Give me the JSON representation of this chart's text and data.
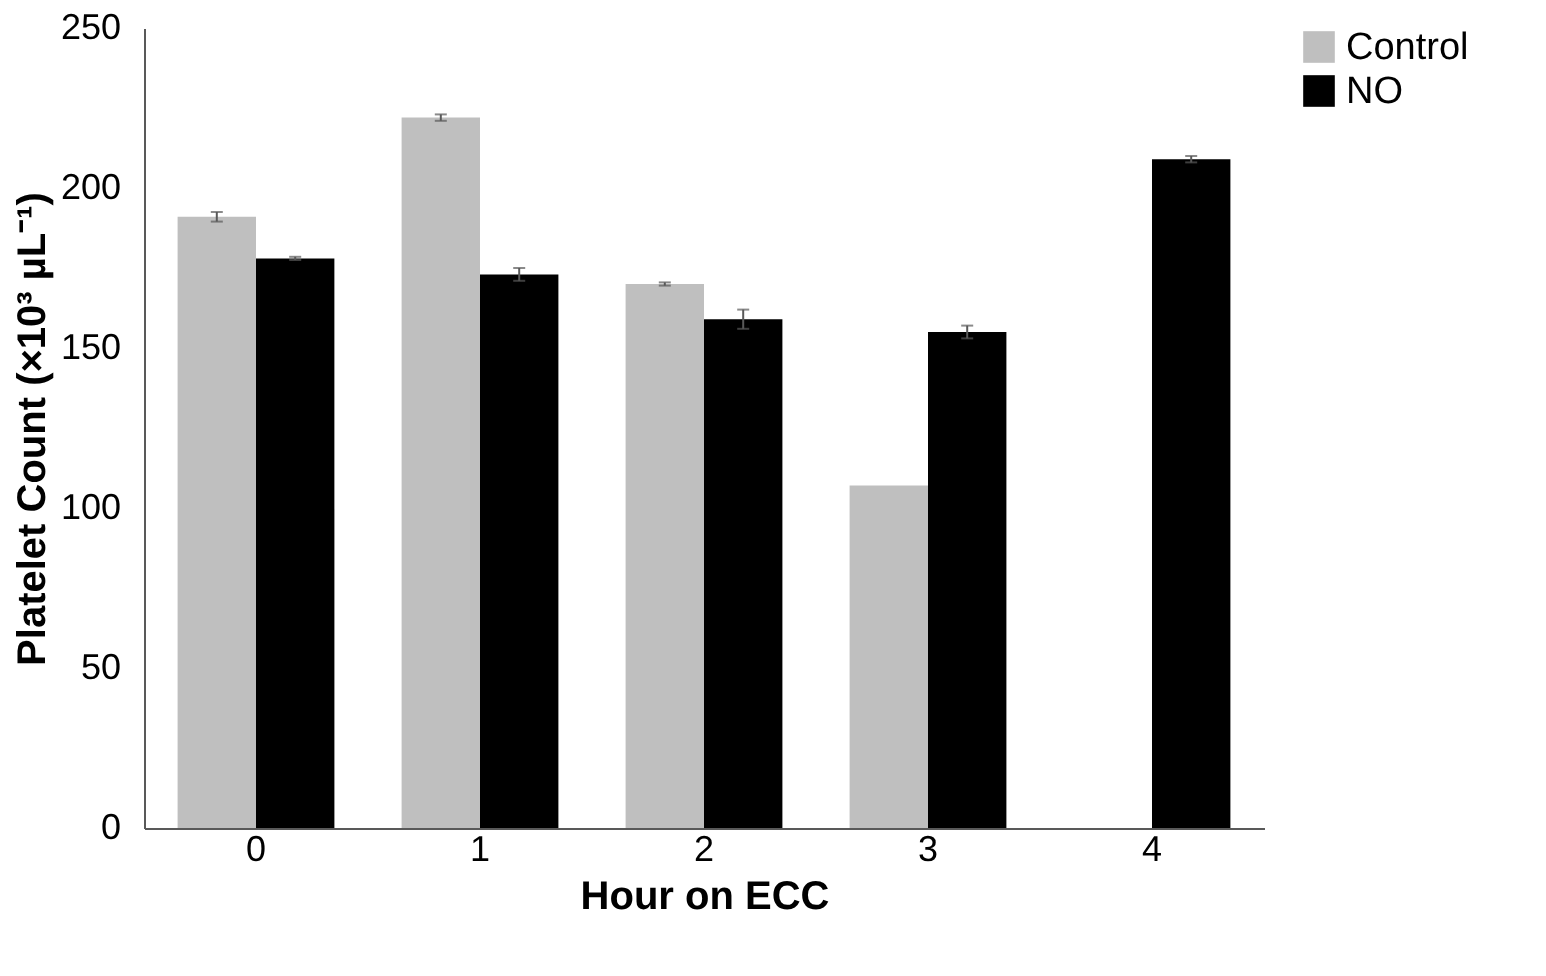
{
  "chart_data": {
    "type": "bar",
    "xlabel": "Hour on ECC",
    "ylabel": "Platelet Count (×10³ µL⁻¹)",
    "categories": [
      "0",
      "1",
      "2",
      "3",
      "4"
    ],
    "series": [
      {
        "name": "Control",
        "color": "#bfbfbf",
        "values": [
          191,
          222,
          170,
          107,
          null
        ],
        "errors": [
          1.5,
          1,
          0.5,
          null,
          null
        ]
      },
      {
        "name": "NO",
        "color": "#000000",
        "values": [
          178,
          173,
          159,
          155,
          209
        ],
        "errors": [
          0.5,
          2,
          3,
          2,
          1
        ]
      }
    ],
    "ylim": [
      0,
      250
    ],
    "yticks": [
      0,
      50,
      100,
      150,
      200,
      250
    ],
    "grid": false,
    "legend": "right"
  }
}
